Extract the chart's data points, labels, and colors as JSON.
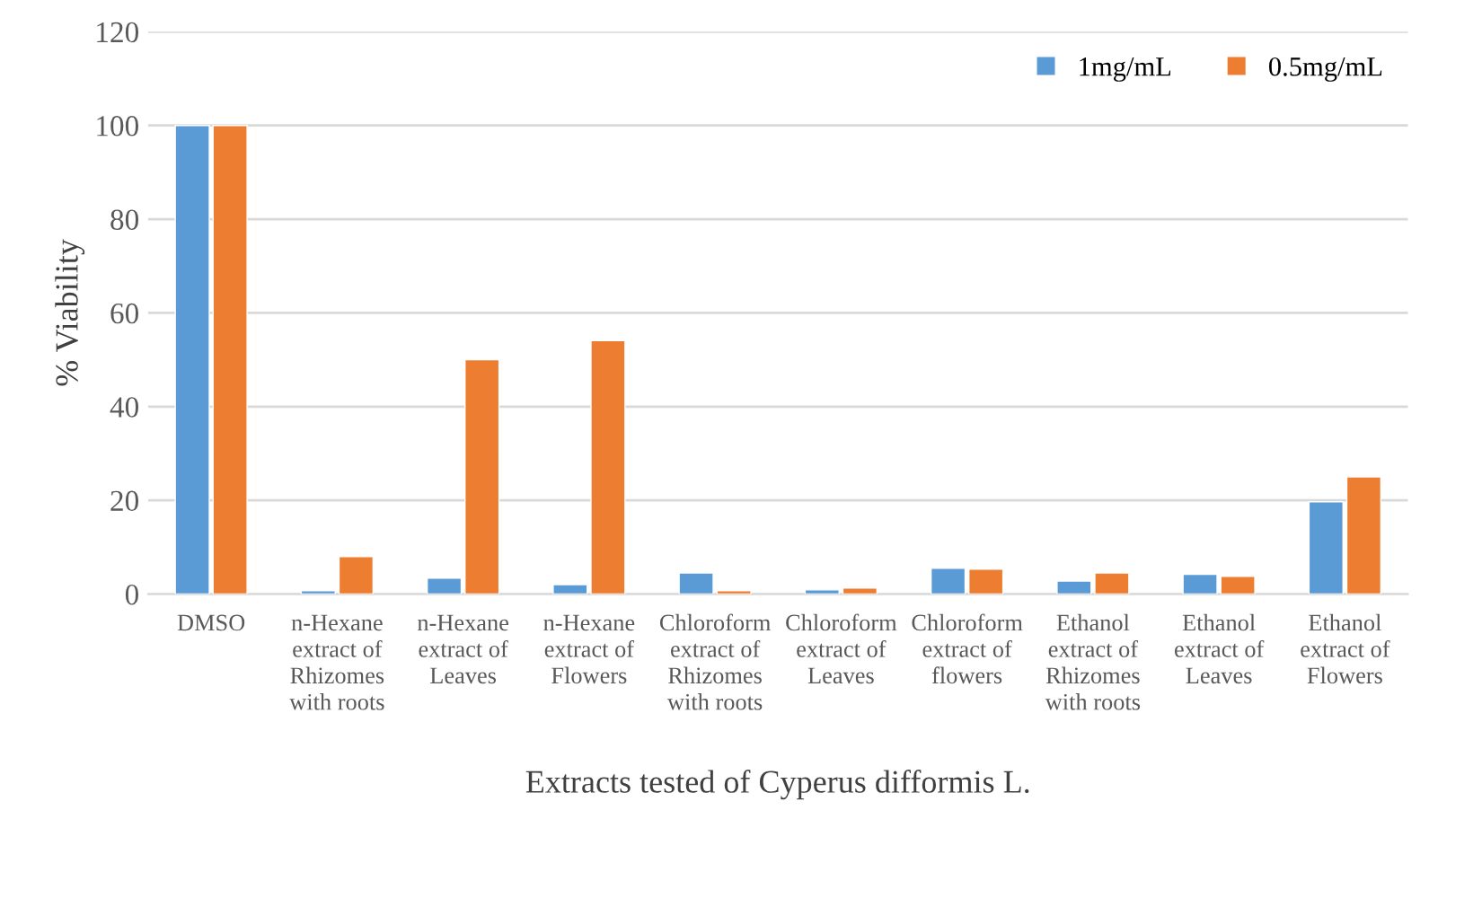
{
  "chart_data": {
    "type": "bar",
    "xlabel": "Extracts tested of Cyperus difformis L.",
    "ylabel": "% Viability",
    "categories": [
      "DMSO",
      "n-Hexane\nextract of\nRhizomes\nwith roots",
      "n-Hexane\nextract of\nLeaves",
      "n-Hexane\nextract of\nFlowers",
      "Chloroform\nextract of\nRhizomes\nwith roots",
      "Chloroform\nextract of\nLeaves",
      "Chloroform\nextract of\nflowers",
      "Ethanol\nextract of\nRhizomes\nwith roots",
      "Ethanol\nextract of\nLeaves",
      "Ethanol\nextract of\nFlowers"
    ],
    "series": [
      {
        "name": "1mg/mL",
        "color": "#5b9bd5",
        "values": [
          100,
          0.7,
          3.4,
          2.0,
          4.5,
          0.9,
          5.5,
          2.8,
          4.2,
          19.7
        ]
      },
      {
        "name": "0.5mg/mL",
        "color": "#ed7d31",
        "values": [
          100,
          8.0,
          50,
          54.1,
          0.7,
          1.3,
          5.3,
          4.5,
          3.8,
          25.0
        ]
      }
    ],
    "ylim": [
      0,
      120
    ],
    "yticks": [
      0,
      20,
      40,
      60,
      80,
      100,
      120
    ],
    "grid": "y",
    "legend": "top right"
  }
}
